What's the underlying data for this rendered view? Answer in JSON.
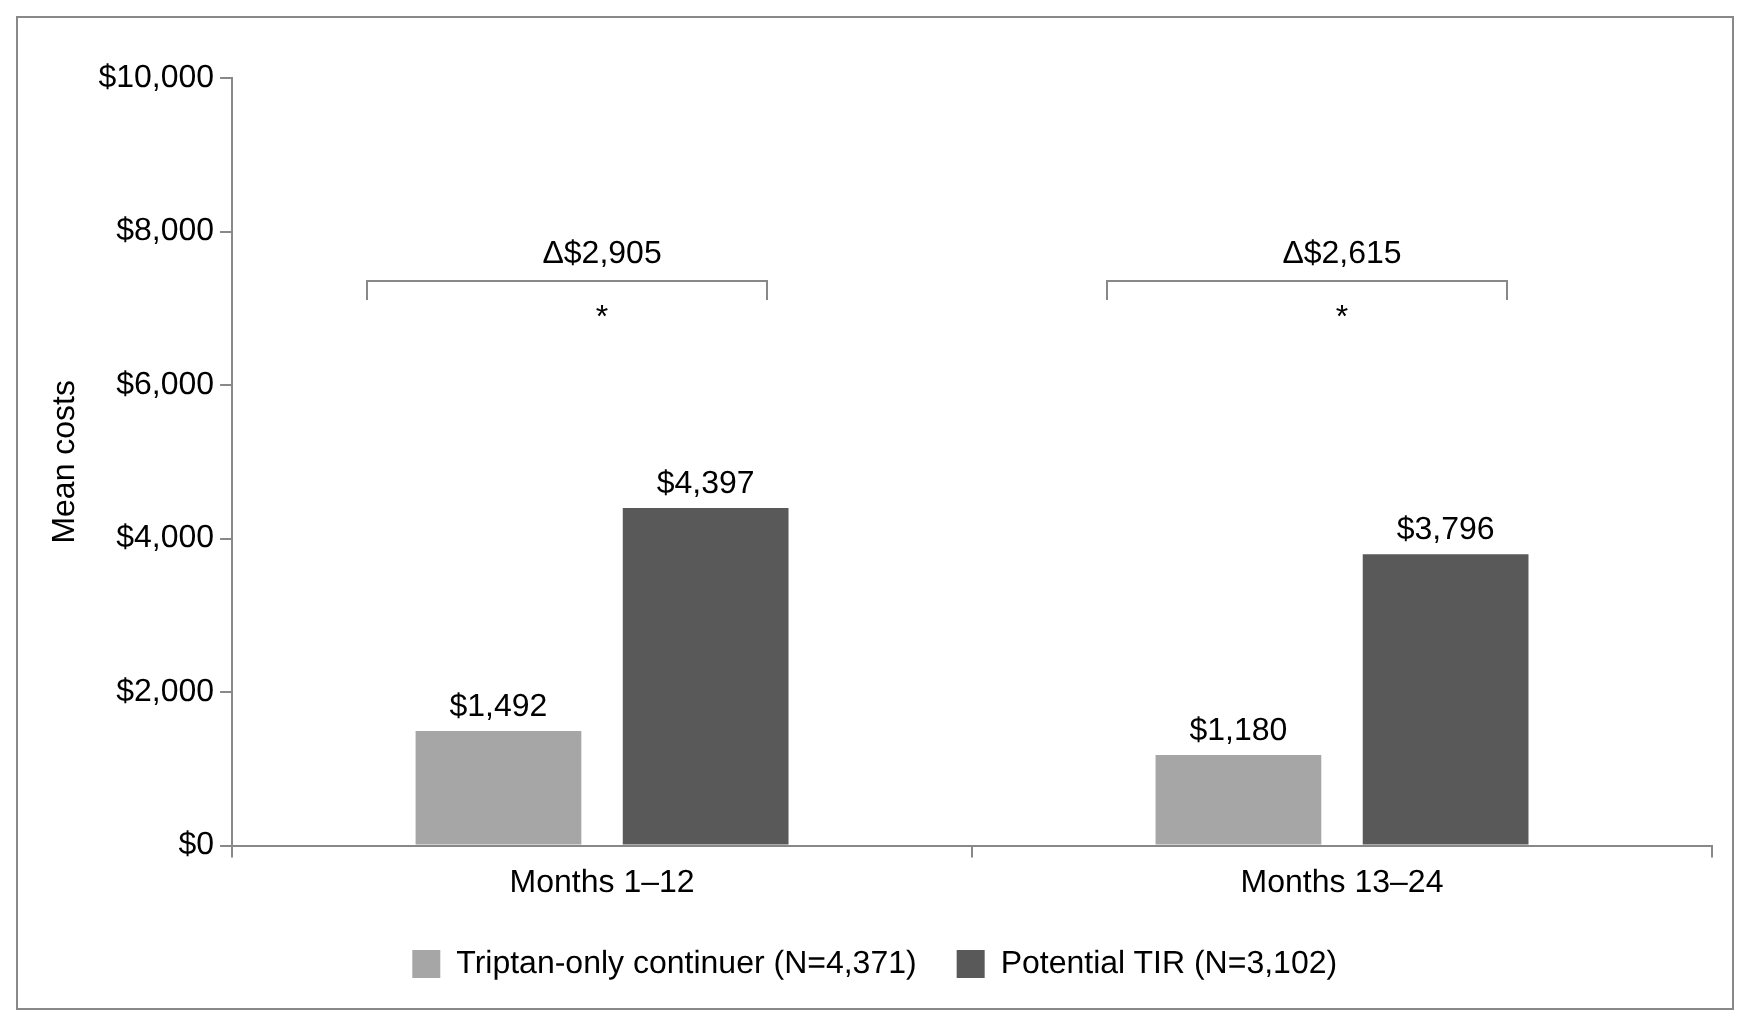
{
  "chart_data": {
    "type": "bar",
    "ylabel": "Mean costs",
    "categories": [
      "Months 1–12",
      "Months 13–24"
    ],
    "series": [
      {
        "name": "Triptan-only continuer (N=4,371)",
        "color": "#a6a6a6",
        "values": [
          1492,
          1180
        ],
        "value_labels": [
          "$1,492",
          "$1,180"
        ]
      },
      {
        "name": "Potential TIR (N=3,102)",
        "color": "#595959",
        "values": [
          4397,
          3796
        ],
        "value_labels": [
          "$4,397",
          "$3,796"
        ]
      }
    ],
    "ylim": [
      0,
      10000
    ],
    "yticks": [
      {
        "value": 0,
        "label": "$0"
      },
      {
        "value": 2000,
        "label": "$2,000"
      },
      {
        "value": 4000,
        "label": "$4,000"
      },
      {
        "value": 6000,
        "label": "$6,000"
      },
      {
        "value": 8000,
        "label": "$8,000"
      },
      {
        "value": 10000,
        "label": "$10,000"
      }
    ],
    "annotations": [
      "Δ$2,905",
      "*",
      "Δ$2,615",
      "*"
    ],
    "grid": false,
    "legend": "bottom"
  }
}
